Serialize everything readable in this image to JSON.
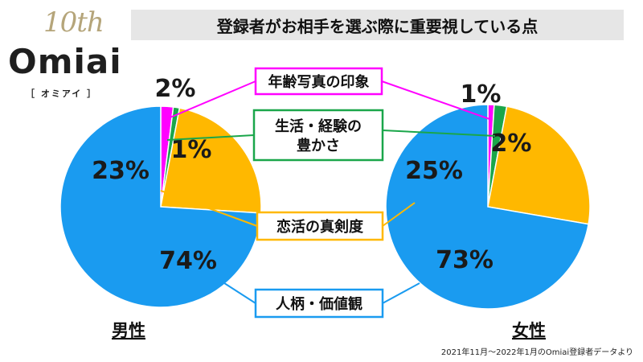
{
  "logo": {
    "anniversary": "10th",
    "name": "Omiai",
    "kana": "［ オミアイ ］"
  },
  "header": {
    "title": "登録者がお相手を選ぶ際に重要視している点"
  },
  "chart_data": {
    "type": "pie",
    "categories": [
      "年齢写真の印象",
      "生活・経験の豊かさ",
      "恋活の真剣度",
      "人柄・価値観"
    ],
    "category_lines": [
      [
        "年齢写真の印象"
      ],
      [
        "生活・経験の",
        "豊かさ"
      ],
      [
        "恋活の真剣度"
      ],
      [
        "人柄・価値観"
      ]
    ],
    "colors": [
      "#ff00ff",
      "#1aa64a",
      "#ffb800",
      "#1a9bf0"
    ],
    "charts": [
      {
        "title": "男性",
        "values": [
          2,
          1,
          23,
          74
        ],
        "labels": [
          "2%",
          "1%",
          "23%",
          "74%"
        ]
      },
      {
        "title": "女性",
        "values": [
          1,
          2,
          25,
          73
        ],
        "labels": [
          "1%",
          "2%",
          "25%",
          "73%"
        ]
      }
    ]
  },
  "source_note": "2021年11月〜2022年1月のOmiai登録者データより"
}
